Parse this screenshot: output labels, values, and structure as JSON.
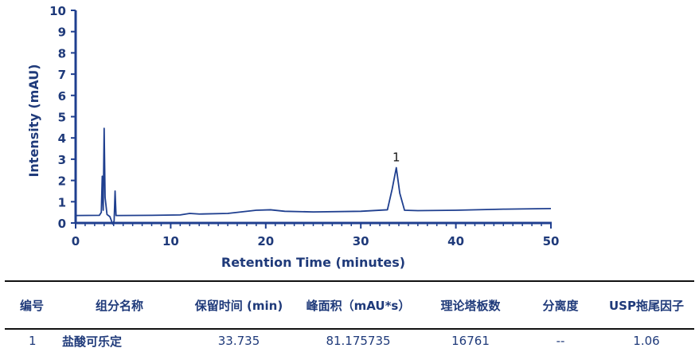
{
  "chart_data": {
    "type": "line",
    "xlabel": "Retention Time (minutes)",
    "ylabel": "Intensity (mAU)",
    "xlim": [
      0,
      50
    ],
    "ylim": [
      0,
      10
    ],
    "xticks": [
      0,
      10,
      20,
      30,
      40,
      50
    ],
    "yticks": [
      0,
      1,
      2,
      3,
      4,
      5,
      6,
      7,
      8,
      9,
      10
    ],
    "grid": false,
    "color": "#1f3f8f",
    "x": [
      0,
      2.5,
      2.7,
      2.8,
      2.9,
      3.0,
      3.1,
      3.3,
      3.6,
      3.9,
      4.05,
      4.15,
      4.25,
      4.5,
      8,
      11,
      12,
      13,
      16,
      19,
      20.5,
      22,
      25,
      30,
      32.8,
      33.3,
      33.735,
      34.1,
      34.6,
      36,
      40,
      45,
      50
    ],
    "y": [
      0.35,
      0.36,
      0.5,
      2.2,
      0.6,
      4.45,
      1.2,
      0.4,
      0.3,
      -0.05,
      0.1,
      1.5,
      0.35,
      0.35,
      0.36,
      0.38,
      0.45,
      0.42,
      0.45,
      0.6,
      0.62,
      0.55,
      0.52,
      0.55,
      0.62,
      1.6,
      2.6,
      1.4,
      0.6,
      0.58,
      0.6,
      0.65,
      0.68
    ],
    "annotations": [
      {
        "x": 33.735,
        "y": 2.75,
        "text": "1"
      }
    ]
  },
  "table": {
    "headers": [
      "编号",
      "组分名称",
      "保留时间 (min)",
      "峰面积（mAU*s）",
      "理论塔板数",
      "分离度",
      "USP拖尾因子"
    ],
    "rows": [
      [
        "1",
        "盐酸可乐定",
        "33.735",
        "81.175735",
        "16761",
        "--",
        "1.06"
      ]
    ]
  }
}
